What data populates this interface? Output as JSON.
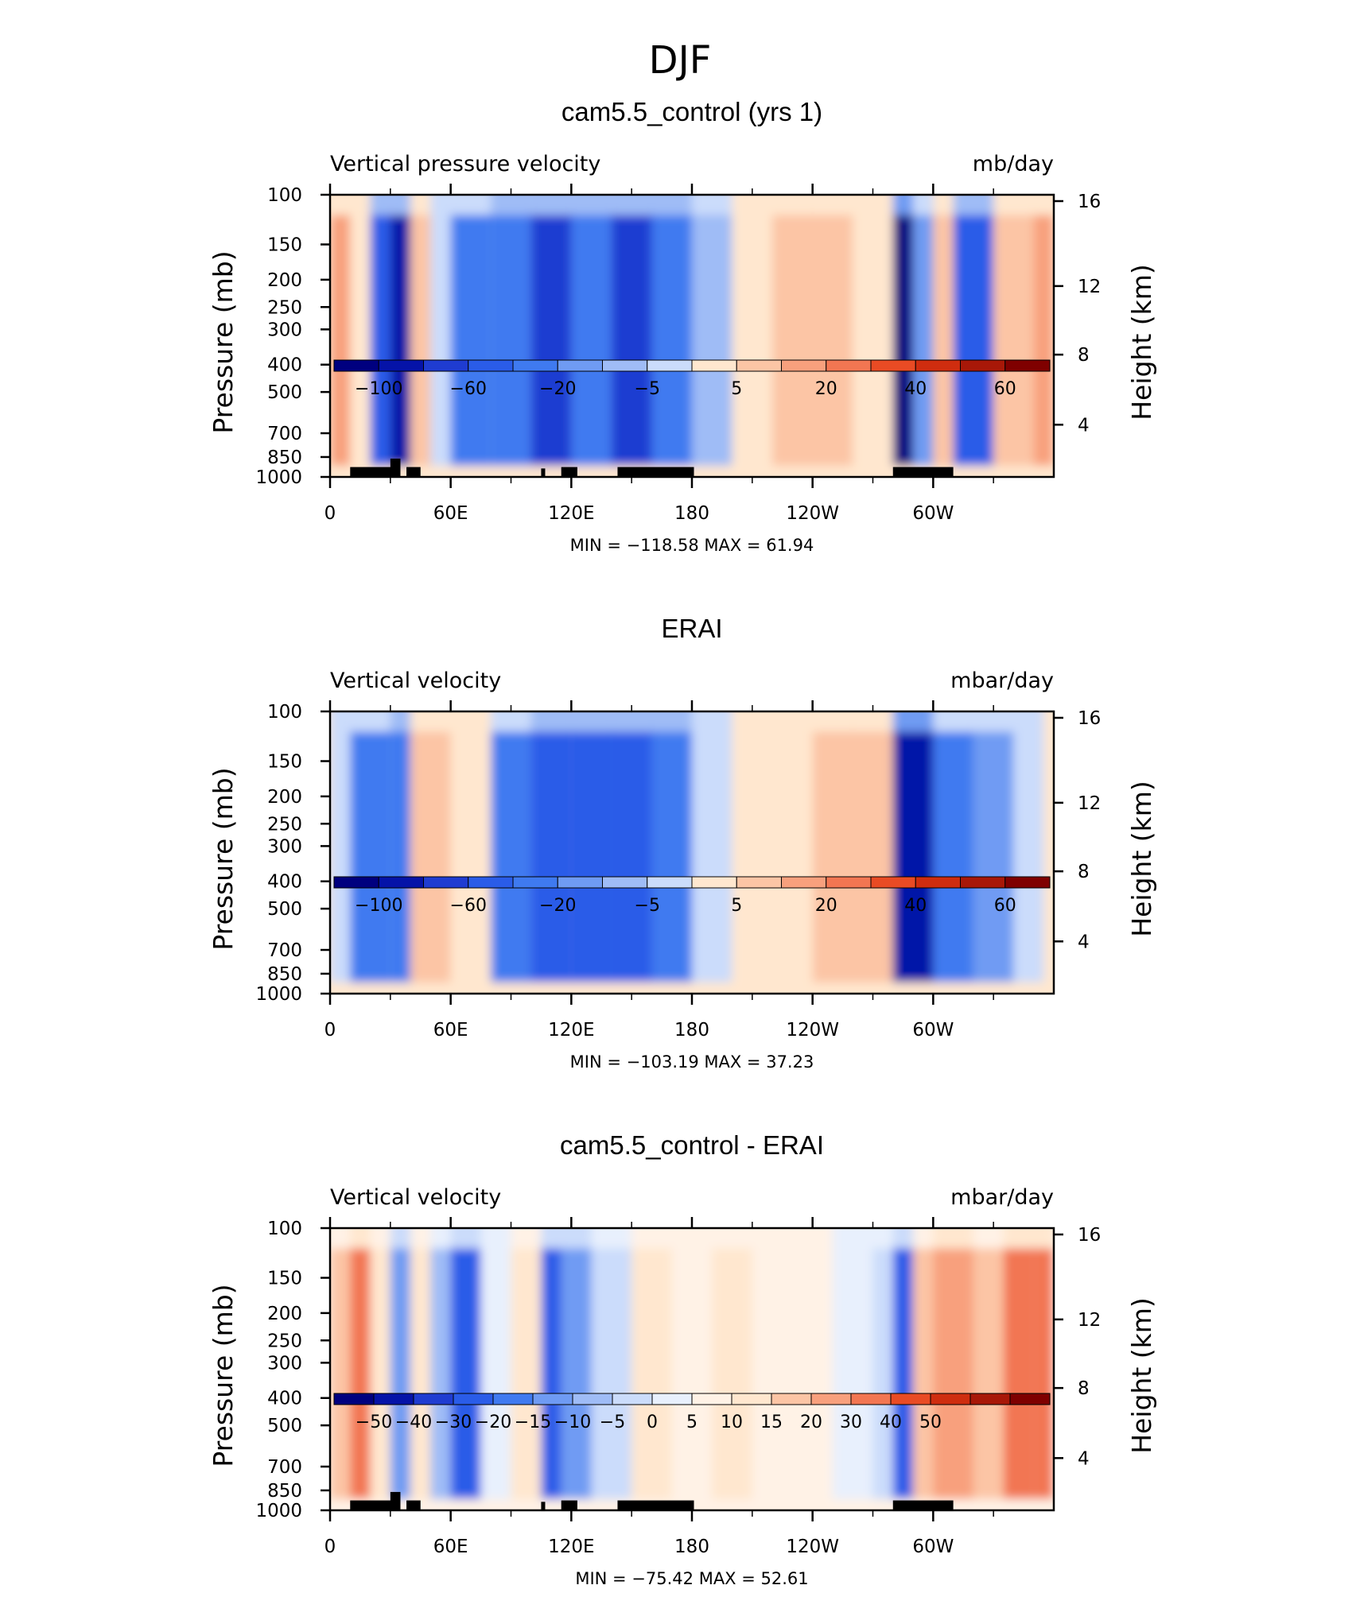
{
  "figure": {
    "title": "DJF"
  },
  "colors": {
    "main_scale": [
      "#00007f",
      "#0513a8",
      "#1f3cd1",
      "#2a5ce8",
      "#3f7af0",
      "#6f9bf3",
      "#9fbcf6",
      "#cbdcfb",
      "#ffe7cf",
      "#fcc5a5",
      "#f8a07d",
      "#f27652",
      "#e94b24",
      "#cf2d0f",
      "#a81808",
      "#7f0000"
    ],
    "diff_scale": [
      "#00007f",
      "#0513a8",
      "#1f3cd1",
      "#2a5ce8",
      "#3f7af0",
      "#6f9bf3",
      "#9fbcf6",
      "#cbdcfb",
      "#e8f0fd",
      "#fff2e6",
      "#ffe7cf",
      "#fcc5a5",
      "#f8a07d",
      "#f27652",
      "#e94b24",
      "#cf2d0f",
      "#a81808",
      "#7f0000"
    ]
  },
  "chart_data": [
    {
      "type": "heatmap",
      "title": "cam5.5_control (yrs 1)",
      "left_label": "Vertical pressure velocity",
      "right_label": "mb/day",
      "ylabel": "Pressure (mb)",
      "ylabel_right": "Height (km)",
      "x_tick_labels": [
        "0",
        "60E",
        "120E",
        "180",
        "120W",
        "60W"
      ],
      "y_ticks": [
        100,
        150,
        200,
        250,
        300,
        400,
        500,
        700,
        850,
        1000
      ],
      "y_right_ticks": [
        16,
        12,
        8,
        4
      ],
      "xlim": [
        0,
        360
      ],
      "ylim": [
        1000,
        100
      ],
      "stats": "MIN = −118.58   MAX =   61.94",
      "min": -118.58,
      "max": 61.94,
      "colorbar_labels": [
        "−100",
        "−60",
        "−20",
        "−5",
        "5",
        "20",
        "40",
        "60"
      ],
      "colorbar_label_positions": [
        1,
        3,
        5,
        7,
        9,
        11,
        13,
        15
      ],
      "field": [
        {
          "lon": 0,
          "value": 30
        },
        {
          "lon": 10,
          "value": 10
        },
        {
          "lon": 20,
          "value": -60
        },
        {
          "lon": 30,
          "value": -90
        },
        {
          "lon": 40,
          "value": 25
        },
        {
          "lon": 50,
          "value": -5
        },
        {
          "lon": 60,
          "value": -45
        },
        {
          "lon": 80,
          "value": -55
        },
        {
          "lon": 100,
          "value": -75
        },
        {
          "lon": 120,
          "value": -50
        },
        {
          "lon": 140,
          "value": -80
        },
        {
          "lon": 160,
          "value": -55
        },
        {
          "lon": 180,
          "value": -20
        },
        {
          "lon": 200,
          "value": 8
        },
        {
          "lon": 220,
          "value": 25
        },
        {
          "lon": 240,
          "value": 22
        },
        {
          "lon": 260,
          "value": 10
        },
        {
          "lon": 280,
          "value": -110
        },
        {
          "lon": 290,
          "value": -30
        },
        {
          "lon": 300,
          "value": 20
        },
        {
          "lon": 310,
          "value": -60
        },
        {
          "lon": 330,
          "value": 15
        },
        {
          "lon": 350,
          "value": 40
        }
      ]
    },
    {
      "type": "heatmap",
      "title": "ERAI",
      "left_label": "Vertical velocity",
      "right_label": "mbar/day",
      "ylabel": "Pressure (mb)",
      "ylabel_right": "Height (km)",
      "x_tick_labels": [
        "0",
        "60E",
        "120E",
        "180",
        "120W",
        "60W"
      ],
      "y_ticks": [
        100,
        150,
        200,
        250,
        300,
        400,
        500,
        700,
        850,
        1000
      ],
      "y_right_ticks": [
        16,
        12,
        8,
        4
      ],
      "xlim": [
        0,
        360
      ],
      "ylim": [
        1000,
        100
      ],
      "stats": "MIN = −103.19   MAX =   37.23",
      "min": -103.19,
      "max": 37.23,
      "colorbar_labels": [
        "−100",
        "−60",
        "−20",
        "−5",
        "5",
        "20",
        "40",
        "60"
      ],
      "colorbar_label_positions": [
        1,
        3,
        5,
        7,
        9,
        11,
        13,
        15
      ],
      "field": [
        {
          "lon": 0,
          "value": -5
        },
        {
          "lon": 10,
          "value": -40
        },
        {
          "lon": 30,
          "value": -45
        },
        {
          "lon": 40,
          "value": 25
        },
        {
          "lon": 60,
          "value": 3
        },
        {
          "lon": 80,
          "value": -40
        },
        {
          "lon": 100,
          "value": -60
        },
        {
          "lon": 120,
          "value": -55
        },
        {
          "lon": 140,
          "value": -60
        },
        {
          "lon": 160,
          "value": -50
        },
        {
          "lon": 180,
          "value": -10
        },
        {
          "lon": 200,
          "value": 4
        },
        {
          "lon": 220,
          "value": 12
        },
        {
          "lon": 240,
          "value": 20
        },
        {
          "lon": 260,
          "value": 22
        },
        {
          "lon": 280,
          "value": -90
        },
        {
          "lon": 300,
          "value": -40
        },
        {
          "lon": 320,
          "value": -30
        },
        {
          "lon": 340,
          "value": -5
        },
        {
          "lon": 355,
          "value": 5
        }
      ]
    },
    {
      "type": "heatmap",
      "title": "cam5.5_control - ERAI",
      "left_label": "Vertical velocity",
      "right_label": "mbar/day",
      "ylabel": "Pressure (mb)",
      "ylabel_right": "Height (km)",
      "x_tick_labels": [
        "0",
        "60E",
        "120E",
        "180",
        "120W",
        "60W"
      ],
      "y_ticks": [
        100,
        150,
        200,
        250,
        300,
        400,
        500,
        700,
        850,
        1000
      ],
      "y_right_ticks": [
        16,
        12,
        8,
        4
      ],
      "xlim": [
        0,
        360
      ],
      "ylim": [
        1000,
        100
      ],
      "stats": "MIN = −75.42   MAX =   52.61",
      "min": -75.42,
      "max": 52.61,
      "colorbar_labels": [
        "−50",
        "−40",
        "−30",
        "−20",
        "−15",
        "−10",
        "−5",
        "0",
        "5",
        "10",
        "15",
        "20",
        "30",
        "40",
        "50"
      ],
      "colorbar_label_positions": [
        1,
        2,
        3,
        4,
        5,
        6,
        7,
        8,
        9,
        10,
        11,
        12,
        13,
        14,
        15
      ],
      "field": [
        {
          "lon": 0,
          "value": 20
        },
        {
          "lon": 10,
          "value": 40
        },
        {
          "lon": 20,
          "value": 10
        },
        {
          "lon": 30,
          "value": -30
        },
        {
          "lon": 40,
          "value": 15
        },
        {
          "lon": 50,
          "value": -20
        },
        {
          "lon": 60,
          "value": -50
        },
        {
          "lon": 75,
          "value": -8
        },
        {
          "lon": 90,
          "value": 15
        },
        {
          "lon": 105,
          "value": -45
        },
        {
          "lon": 115,
          "value": -30
        },
        {
          "lon": 130,
          "value": -10
        },
        {
          "lon": 150,
          "value": 15
        },
        {
          "lon": 170,
          "value": 8
        },
        {
          "lon": 190,
          "value": 15
        },
        {
          "lon": 210,
          "value": 5
        },
        {
          "lon": 230,
          "value": 5
        },
        {
          "lon": 250,
          "value": -5
        },
        {
          "lon": 270,
          "value": -15
        },
        {
          "lon": 280,
          "value": -50
        },
        {
          "lon": 290,
          "value": 25
        },
        {
          "lon": 300,
          "value": 30
        },
        {
          "lon": 320,
          "value": 20
        },
        {
          "lon": 335,
          "value": 40
        },
        {
          "lon": 350,
          "value": 35
        }
      ]
    }
  ]
}
